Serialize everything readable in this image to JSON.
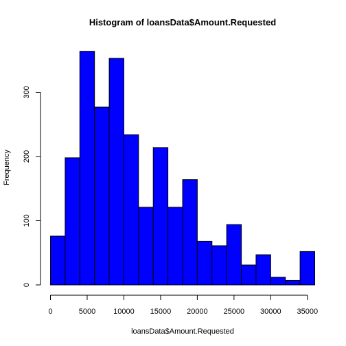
{
  "chart_data": {
    "type": "bar",
    "title": "Histogram of loansData$Amount.Requested",
    "xlabel": "loansData$Amount.Requested",
    "ylabel": "Frequency",
    "bar_color": "#0000ff",
    "edge_color": "#000000",
    "grid": false,
    "xlim": [
      0,
      36000
    ],
    "ylim": [
      0,
      365
    ],
    "bin_width": 2000,
    "bin_edges": [
      0,
      2000,
      4000,
      6000,
      8000,
      10000,
      12000,
      14000,
      16000,
      18000,
      20000,
      22000,
      24000,
      26000,
      28000,
      30000,
      32000,
      34000,
      36000
    ],
    "values": [
      76,
      198,
      364,
      277,
      353,
      234,
      121,
      214,
      121,
      164,
      68,
      61,
      94,
      31,
      47,
      12,
      7,
      52
    ],
    "x_ticks": [
      0,
      5000,
      10000,
      15000,
      20000,
      25000,
      30000,
      35000
    ],
    "x_tick_labels": [
      "0",
      "5000",
      "10000",
      "15000",
      "20000",
      "25000",
      "30000",
      "35000"
    ],
    "y_ticks": [
      0,
      100,
      200,
      300
    ],
    "y_tick_labels": [
      "0",
      "100",
      "200",
      "300"
    ]
  }
}
